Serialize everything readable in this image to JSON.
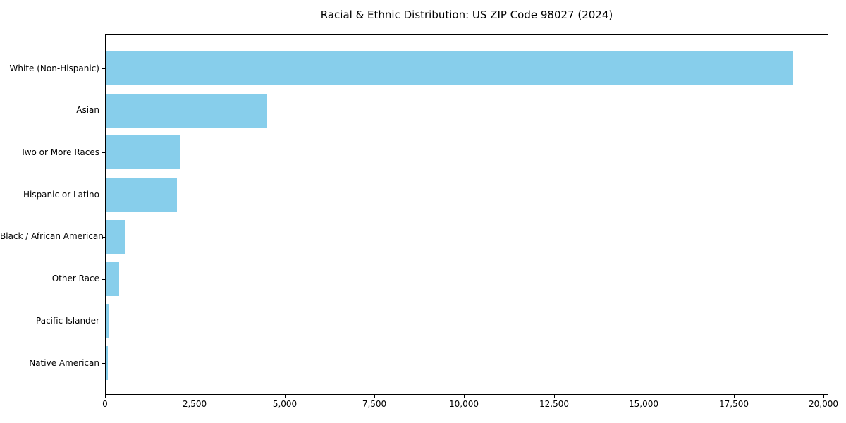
{
  "chart_data": {
    "type": "bar",
    "orientation": "horizontal",
    "title": "Racial & Ethnic Distribution: US ZIP Code 98027 (2024)",
    "categories": [
      "White (Non-Hispanic)",
      "Asian",
      "Two or More Races",
      "Hispanic or Latino",
      "Black / African American",
      "Other Race",
      "Pacific Islander",
      "Native American"
    ],
    "values": [
      19150,
      4500,
      2080,
      1980,
      530,
      370,
      100,
      50
    ],
    "xlabel": "",
    "ylabel": "",
    "xlim": [
      0,
      20118
    ],
    "xticks": [
      0,
      2500,
      5000,
      7500,
      10000,
      12500,
      15000,
      17500,
      20000
    ],
    "xtick_labels": [
      "0",
      "2,500",
      "5,000",
      "7,500",
      "10,000",
      "12,500",
      "15,000",
      "17,500",
      "20,000"
    ],
    "bar_color": "#87CEEB",
    "axis_color": "#000000",
    "background_color": "#ffffff",
    "grid": false,
    "legend": null
  }
}
